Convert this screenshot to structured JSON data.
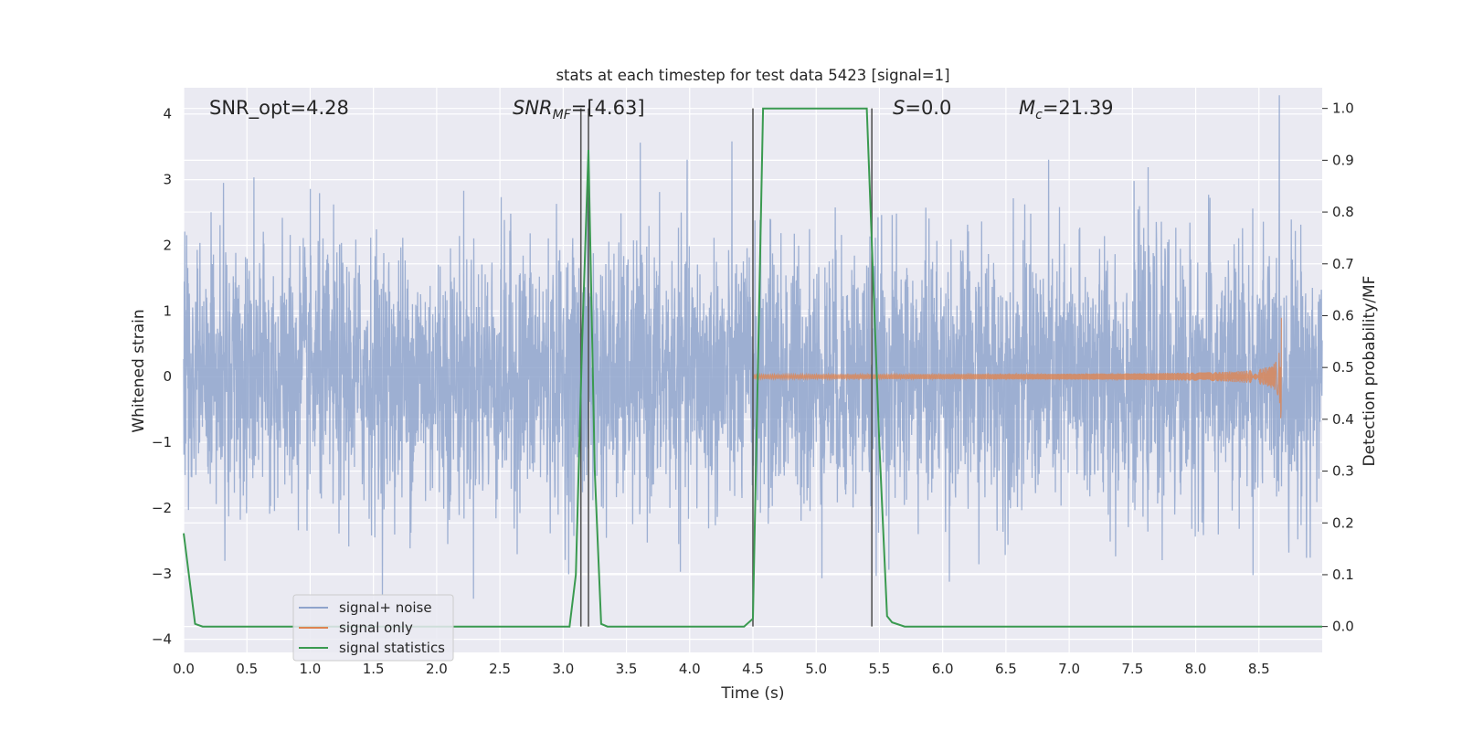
{
  "chart_data": {
    "type": "line",
    "title": "stats at each timestep for test data 5423 [signal=1]",
    "xlabel": "Time (s)",
    "ylabel": "Whitened strain",
    "y2label": "Detection probability/MF",
    "xlim": [
      0.0,
      9.0
    ],
    "ylim": [
      -4.2,
      4.4
    ],
    "y2lim": [
      -0.05,
      1.04
    ],
    "x_ticks": [
      "0.0",
      "0.5",
      "1.0",
      "1.5",
      "2.0",
      "2.5",
      "3.0",
      "3.5",
      "4.0",
      "4.5",
      "5.0",
      "5.5",
      "6.0",
      "6.5",
      "7.0",
      "7.5",
      "8.0",
      "8.5"
    ],
    "y_ticks": [
      "4",
      "3",
      "2",
      "1",
      "0",
      "−1",
      "−2",
      "−3",
      "−4"
    ],
    "y2_ticks": [
      "1.0",
      "0.9",
      "0.8",
      "0.7",
      "0.6",
      "0.5",
      "0.4",
      "0.3",
      "0.2",
      "0.1",
      "0.0"
    ],
    "grid": true,
    "legend_position": "lower-left",
    "annotations": {
      "snr_opt": "SNR_opt=4.28",
      "snr_mf_base": "SNR",
      "snr_mf_sub": "MF",
      "snr_mf_rest": "=[4.63]",
      "s_var": "S",
      "s_rest": "=0.0",
      "mc_var": "M",
      "mc_sub": "c",
      "mc_rest": "=21.39"
    },
    "series": [
      {
        "name": "signal+ noise",
        "color": "#8fa4cc",
        "description_values": "whitened noise, roughly ±2 with peaks to ±4",
        "noise_sigma": 1.0
      },
      {
        "name": "signal only",
        "color": "#dd8452",
        "chirp_start": 4.5,
        "chirp_end": 8.68,
        "peak_amplitude": 0.95
      },
      {
        "name": "signal statistics",
        "color": "#3a9a50",
        "x": [
          0.0,
          0.09,
          0.15,
          3.05,
          3.1,
          3.15,
          3.2,
          3.25,
          3.3,
          3.35,
          4.43,
          4.5,
          4.58,
          5.4,
          5.5,
          5.56,
          5.6,
          5.7,
          5.8,
          9.0
        ],
        "values": [
          0.18,
          0.005,
          0.0,
          0.0,
          0.1,
          0.55,
          0.92,
          0.3,
          0.005,
          0.0,
          0.0,
          0.015,
          1.0,
          1.0,
          0.35,
          0.02,
          0.008,
          0.0,
          0.0,
          0.0
        ]
      }
    ],
    "vertical_markers": [
      3.14,
      3.2,
      4.5,
      5.44
    ],
    "colors": {
      "background": "#eaeaf2",
      "grid": "#ffffff",
      "marker": "#555555"
    }
  }
}
